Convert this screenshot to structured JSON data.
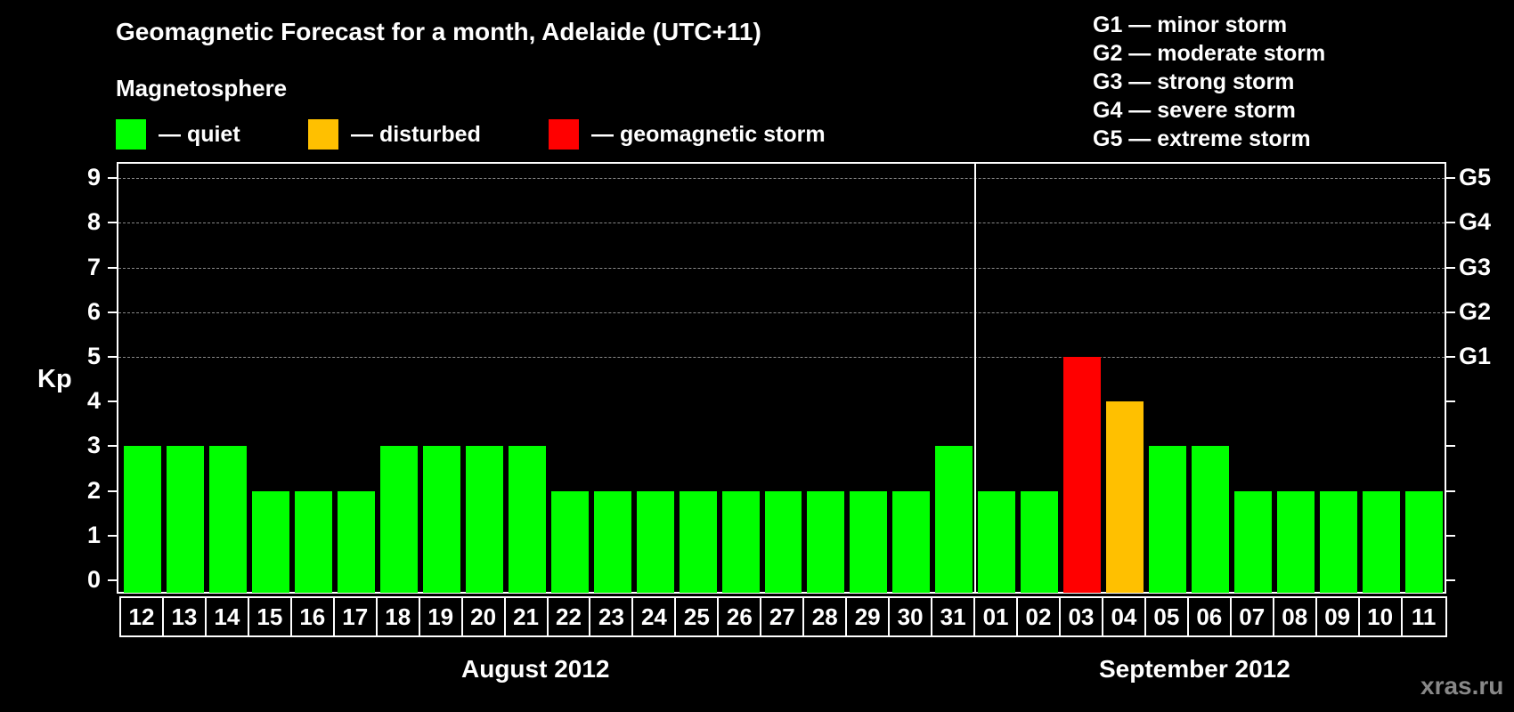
{
  "header": {
    "title": "Geomagnetic Forecast for a month, Adelaide (UTC+11)",
    "subtitle": "Magnetosphere"
  },
  "legend": {
    "items": [
      {
        "label": "— quiet",
        "color": "#00ff00"
      },
      {
        "label": "— disturbed",
        "color": "#ffc000"
      },
      {
        "label": "— geomagnetic storm",
        "color": "#ff0000"
      }
    ]
  },
  "storm_legend": [
    "G1 — minor storm",
    "G2 — moderate storm",
    "G3 — strong storm",
    "G4 — severe storm",
    "G5 — extreme storm"
  ],
  "watermark": "xras.ru",
  "chart_data": {
    "type": "bar",
    "title": "Geomagnetic Forecast for a month, Adelaide (UTC+11)",
    "ylabel": "Kp",
    "xlabel": "",
    "ylim": [
      0,
      9
    ],
    "yticks": [
      0,
      1,
      2,
      3,
      4,
      5,
      6,
      7,
      8,
      9
    ],
    "right_axis_labels": [
      {
        "kp": 5,
        "label": "G1"
      },
      {
        "kp": 6,
        "label": "G2"
      },
      {
        "kp": 7,
        "label": "G3"
      },
      {
        "kp": 8,
        "label": "G4"
      },
      {
        "kp": 9,
        "label": "G5"
      }
    ],
    "grid": "dashed at Kp 5-9",
    "month_groups": [
      {
        "label": "August 2012",
        "days": 20
      },
      {
        "label": "September 2012",
        "days": 11
      }
    ],
    "categories": [
      "12",
      "13",
      "14",
      "15",
      "16",
      "17",
      "18",
      "19",
      "20",
      "21",
      "22",
      "23",
      "24",
      "25",
      "26",
      "27",
      "28",
      "29",
      "30",
      "31",
      "01",
      "02",
      "03",
      "04",
      "05",
      "06",
      "07",
      "08",
      "09",
      "10",
      "11"
    ],
    "values": [
      3,
      3,
      3,
      2,
      2,
      2,
      3,
      3,
      3,
      3,
      2,
      2,
      2,
      2,
      2,
      2,
      2,
      2,
      2,
      3,
      2,
      2,
      5,
      4,
      3,
      3,
      2,
      2,
      2,
      2,
      2
    ],
    "status": [
      "quiet",
      "quiet",
      "quiet",
      "quiet",
      "quiet",
      "quiet",
      "quiet",
      "quiet",
      "quiet",
      "quiet",
      "quiet",
      "quiet",
      "quiet",
      "quiet",
      "quiet",
      "quiet",
      "quiet",
      "quiet",
      "quiet",
      "quiet",
      "quiet",
      "quiet",
      "geomagnetic storm",
      "disturbed",
      "quiet",
      "quiet",
      "quiet",
      "quiet",
      "quiet",
      "quiet",
      "quiet"
    ],
    "colors": {
      "quiet": "#00ff00",
      "disturbed": "#ffc000",
      "geomagnetic storm": "#ff0000"
    }
  }
}
